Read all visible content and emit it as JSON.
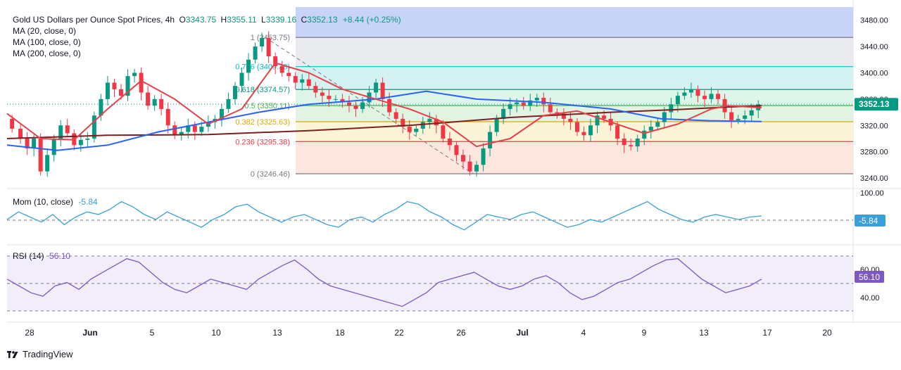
{
  "header": {
    "title": "Gold US Dollars per Ounce Spot Prices, 4h",
    "open_label": "O",
    "open": "3343.75",
    "high_label": "H",
    "high": "3355.11",
    "low_label": "L",
    "low": "3339.16",
    "close_label": "C",
    "close": "3352.13",
    "change": "+8.44 (+0.25%)",
    "indicators": [
      "MA (20, close, 0)",
      "MA (100, close, 0)",
      "MA (200, close, 0)"
    ]
  },
  "momentum": {
    "label": "Mom (10, close)",
    "value": "-5.84",
    "axis_label": "100.00",
    "badge": "-5.84"
  },
  "rsi": {
    "label": "RSI (14)",
    "value": "56.10",
    "axis_labels": [
      "60.00",
      "40.00"
    ],
    "badge": "56.10"
  },
  "brand": "TradingView",
  "colors": {
    "up": "#089981",
    "down": "#f23645",
    "ma20": "#e8404a",
    "ma100": "#2962ff",
    "ma200": "#7b1f1f",
    "mom": "#3aa0d8",
    "rsi": "#7e57c2"
  },
  "chart_data": {
    "type": "candlestick",
    "title": "Gold US Dollars per Ounce Spot Prices, 4h",
    "x_tick_labels": [
      "28",
      "Jun",
      "5",
      "10",
      "13",
      "18",
      "22",
      "26",
      "Jul",
      "4",
      "9",
      "13",
      "17",
      "20"
    ],
    "y_tick_labels": [
      "3480.00",
      "3440.00",
      "3400.00",
      "3360.00",
      "3320.00",
      "3280.00",
      "3240.00"
    ],
    "ylim": [
      3224,
      3500
    ],
    "last_price": "3352.13",
    "fibonacci": [
      {
        "label": "1 (3453.75)",
        "value": 3453.75
      },
      {
        "label": "0.786 (3409.38)",
        "value": 3409.38
      },
      {
        "label": "0.618 (3374.57)",
        "value": 3374.57
      },
      {
        "label": "0.5 (3350.11)",
        "value": 3350.11
      },
      {
        "label": "0.382 (3325.63)",
        "value": 3325.63
      },
      {
        "label": "0.236 (3295.38)",
        "value": 3295.38
      },
      {
        "label": "0 (3246.46)",
        "value": 3246.46
      }
    ],
    "fib_zone_colors": [
      "#c8d3f8",
      "#e3e6ea",
      "#c9efed",
      "#d6f2e4",
      "#d9f0da",
      "#fbf1cf",
      "#fde0d4",
      "#fad4d8"
    ],
    "price_path": [
      [
        0,
        3330
      ],
      [
        3,
        3315
      ],
      [
        5,
        3300
      ],
      [
        7,
        3285
      ],
      [
        9,
        3300
      ],
      [
        11,
        3250
      ],
      [
        13,
        3275
      ],
      [
        15,
        3300
      ],
      [
        17,
        3320
      ],
      [
        19,
        3308
      ],
      [
        21,
        3290
      ],
      [
        23,
        3298
      ],
      [
        25,
        3300
      ],
      [
        27,
        3335
      ],
      [
        29,
        3360
      ],
      [
        31,
        3385
      ],
      [
        33,
        3375
      ],
      [
        35,
        3365
      ],
      [
        37,
        3395
      ],
      [
        39,
        3400
      ],
      [
        41,
        3370
      ],
      [
        43,
        3350
      ],
      [
        45,
        3360
      ],
      [
        47,
        3345
      ],
      [
        49,
        3320
      ],
      [
        51,
        3305
      ],
      [
        53,
        3310
      ],
      [
        55,
        3320
      ],
      [
        57,
        3310
      ],
      [
        59,
        3318
      ],
      [
        61,
        3325
      ],
      [
        63,
        3330
      ],
      [
        65,
        3345
      ],
      [
        67,
        3360
      ],
      [
        69,
        3380
      ],
      [
        71,
        3400
      ],
      [
        73,
        3420
      ],
      [
        75,
        3440
      ],
      [
        77,
        3453
      ],
      [
        79,
        3425
      ],
      [
        81,
        3410
      ],
      [
        83,
        3400
      ],
      [
        85,
        3395
      ],
      [
        87,
        3385
      ],
      [
        89,
        3390
      ],
      [
        91,
        3380
      ],
      [
        93,
        3370
      ],
      [
        95,
        3365
      ],
      [
        97,
        3360
      ],
      [
        99,
        3360
      ],
      [
        101,
        3355
      ],
      [
        103,
        3350
      ],
      [
        105,
        3345
      ],
      [
        107,
        3355
      ],
      [
        109,
        3370
      ],
      [
        111,
        3385
      ],
      [
        113,
        3360
      ],
      [
        115,
        3340
      ],
      [
        117,
        3330
      ],
      [
        119,
        3318
      ],
      [
        121,
        3310
      ],
      [
        123,
        3315
      ],
      [
        125,
        3325
      ],
      [
        127,
        3330
      ],
      [
        129,
        3320
      ],
      [
        131,
        3300
      ],
      [
        133,
        3290
      ],
      [
        135,
        3275
      ],
      [
        137,
        3265
      ],
      [
        139,
        3250
      ],
      [
        141,
        3260
      ],
      [
        143,
        3285
      ],
      [
        145,
        3310
      ],
      [
        147,
        3330
      ],
      [
        149,
        3345
      ],
      [
        151,
        3352
      ],
      [
        153,
        3355
      ],
      [
        155,
        3350
      ],
      [
        157,
        3358
      ],
      [
        159,
        3362
      ],
      [
        161,
        3352
      ],
      [
        163,
        3340
      ],
      [
        165,
        3338
      ],
      [
        167,
        3330
      ],
      [
        169,
        3325
      ],
      [
        171,
        3310
      ],
      [
        173,
        3305
      ],
      [
        175,
        3320
      ],
      [
        177,
        3335
      ],
      [
        179,
        3330
      ],
      [
        181,
        3320
      ],
      [
        183,
        3300
      ],
      [
        185,
        3290
      ],
      [
        187,
        3288
      ],
      [
        189,
        3300
      ],
      [
        191,
        3312
      ],
      [
        193,
        3318
      ],
      [
        195,
        3325
      ],
      [
        197,
        3340
      ],
      [
        199,
        3352
      ],
      [
        201,
        3365
      ],
      [
        203,
        3370
      ],
      [
        205,
        3375
      ],
      [
        207,
        3365
      ],
      [
        209,
        3360
      ],
      [
        211,
        3368
      ],
      [
        213,
        3360
      ],
      [
        215,
        3340
      ],
      [
        217,
        3328
      ],
      [
        219,
        3330
      ],
      [
        221,
        3335
      ],
      [
        223,
        3343
      ],
      [
        225,
        3352
      ]
    ],
    "ma20": [
      [
        0,
        3338
      ],
      [
        10,
        3300
      ],
      [
        20,
        3298
      ],
      [
        30,
        3345
      ],
      [
        40,
        3388
      ],
      [
        50,
        3360
      ],
      [
        60,
        3322
      ],
      [
        70,
        3345
      ],
      [
        80,
        3415
      ],
      [
        90,
        3400
      ],
      [
        100,
        3375
      ],
      [
        110,
        3360
      ],
      [
        120,
        3345
      ],
      [
        130,
        3325
      ],
      [
        140,
        3288
      ],
      [
        150,
        3300
      ],
      [
        160,
        3335
      ],
      [
        170,
        3342
      ],
      [
        180,
        3325
      ],
      [
        190,
        3308
      ],
      [
        200,
        3322
      ],
      [
        210,
        3345
      ],
      [
        215,
        3350
      ],
      [
        225,
        3347
      ]
    ],
    "ma100": [
      [
        0,
        3290
      ],
      [
        15,
        3282
      ],
      [
        30,
        3290
      ],
      [
        45,
        3310
      ],
      [
        60,
        3325
      ],
      [
        75,
        3340
      ],
      [
        90,
        3352
      ],
      [
        110,
        3360
      ],
      [
        125,
        3372
      ],
      [
        140,
        3360
      ],
      [
        160,
        3355
      ],
      [
        180,
        3345
      ],
      [
        195,
        3330
      ],
      [
        210,
        3327
      ],
      [
        225,
        3326
      ]
    ],
    "ma200": [
      [
        0,
        3300
      ],
      [
        30,
        3305
      ],
      [
        60,
        3306
      ],
      [
        90,
        3312
      ],
      [
        120,
        3320
      ],
      [
        150,
        3332
      ],
      [
        180,
        3340
      ],
      [
        200,
        3344
      ],
      [
        215,
        3348
      ],
      [
        225,
        3350
      ]
    ],
    "diagonal": [
      [
        77,
        3453.75
      ],
      [
        139,
        3246.46
      ]
    ],
    "momentum_series": [
      0.45,
      0.6,
      0.5,
      0.4,
      0.55,
      0.35,
      0.5,
      0.6,
      0.55,
      0.65,
      0.8,
      0.7,
      0.55,
      0.45,
      0.6,
      0.5,
      0.4,
      0.3,
      0.45,
      0.55,
      0.7,
      0.75,
      0.6,
      0.5,
      0.4,
      0.5,
      0.55,
      0.45,
      0.35,
      0.3,
      0.45,
      0.5,
      0.4,
      0.55,
      0.65,
      0.8,
      0.75,
      0.6,
      0.5,
      0.35,
      0.25,
      0.4,
      0.55,
      0.5,
      0.45,
      0.55,
      0.6,
      0.5,
      0.4,
      0.3,
      0.35,
      0.45,
      0.4,
      0.5,
      0.6,
      0.7,
      0.8,
      0.65,
      0.55,
      0.45,
      0.4,
      0.5,
      0.55,
      0.5,
      0.45,
      0.5,
      0.52
    ],
    "rsi_series": [
      0.6,
      0.5,
      0.4,
      0.35,
      0.5,
      0.55,
      0.45,
      0.6,
      0.7,
      0.8,
      0.9,
      0.85,
      0.7,
      0.55,
      0.45,
      0.4,
      0.5,
      0.6,
      0.55,
      0.5,
      0.45,
      0.6,
      0.7,
      0.8,
      0.88,
      0.75,
      0.6,
      0.5,
      0.45,
      0.4,
      0.35,
      0.3,
      0.25,
      0.2,
      0.3,
      0.4,
      0.55,
      0.6,
      0.65,
      0.7,
      0.6,
      0.5,
      0.45,
      0.5,
      0.6,
      0.65,
      0.55,
      0.4,
      0.3,
      0.35,
      0.45,
      0.55,
      0.6,
      0.7,
      0.8,
      0.88,
      0.9,
      0.75,
      0.6,
      0.5,
      0.4,
      0.45,
      0.5,
      0.6
    ]
  }
}
